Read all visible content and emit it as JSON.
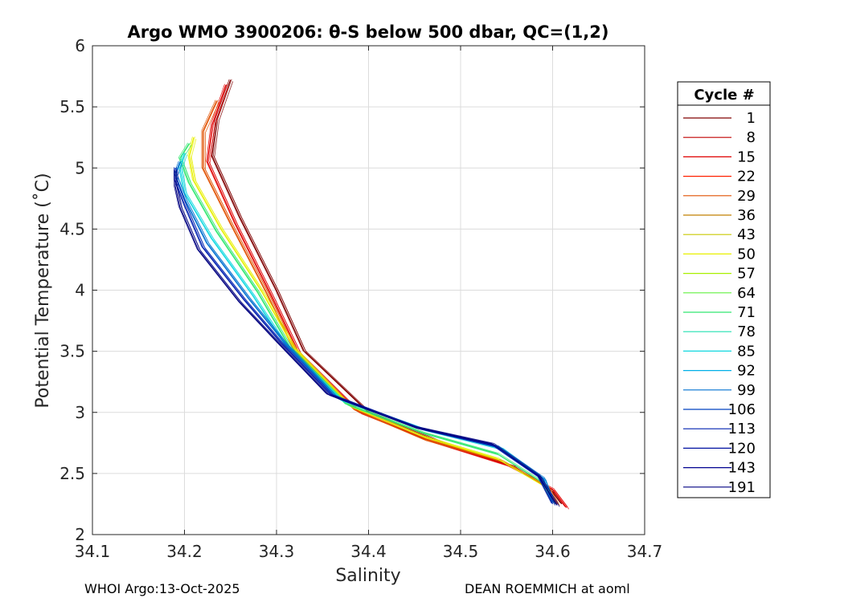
{
  "chart_data": {
    "type": "line",
    "title": "Argo WMO 3900206: θ-S below 500 dbar,  QC=(1,2)",
    "xlabel": "Salinity",
    "ylabel": "Potential Temperature (˚C)",
    "xlim": [
      34.1,
      34.7
    ],
    "ylim": [
      2,
      6
    ],
    "xticks": [
      "34.1",
      "34.2",
      "34.3",
      "34.4",
      "34.5",
      "34.6",
      "34.7"
    ],
    "yticks": [
      "2",
      "2.5",
      "3",
      "3.5",
      "4",
      "4.5",
      "5",
      "5.5",
      "6"
    ],
    "grid": true,
    "legend": {
      "title": "Cycle #",
      "placement": "outside-right",
      "entries": [
        "1",
        "8",
        "15",
        "22",
        "29",
        "36",
        "43",
        "50",
        "57",
        "64",
        "71",
        "78",
        "85",
        "92",
        "99",
        "106",
        "113",
        "120",
        "143",
        "191"
      ],
      "colors": [
        "#800000",
        "#c00000",
        "#e00000",
        "#ff2000",
        "#e05000",
        "#c08000",
        "#c8c800",
        "#e8f000",
        "#a8f000",
        "#60f040",
        "#30e870",
        "#20e0b0",
        "#10d8e0",
        "#00b0e8",
        "#0070d0",
        "#0040c0",
        "#0020b0",
        "#0010a0",
        "#000090",
        "#000080"
      ]
    },
    "series": [
      {
        "color": "#800000",
        "x": [
          34.25,
          34.235,
          34.23,
          34.26,
          34.3,
          34.33,
          34.4,
          34.48,
          34.56,
          34.6,
          34.61
        ],
        "y": [
          5.72,
          5.4,
          5.1,
          4.6,
          4.0,
          3.5,
          3.0,
          2.75,
          2.55,
          2.35,
          2.25
        ]
      },
      {
        "color": "#e00000",
        "x": [
          34.245,
          34.23,
          34.225,
          34.255,
          34.295,
          34.325,
          34.39,
          34.47,
          34.55,
          34.6,
          34.615
        ],
        "y": [
          5.68,
          5.35,
          5.05,
          4.55,
          3.95,
          3.48,
          3.0,
          2.76,
          2.57,
          2.37,
          2.22
        ]
      },
      {
        "color": "#e05000",
        "x": [
          34.235,
          34.22,
          34.22,
          34.25,
          34.29,
          34.32,
          34.385,
          34.46,
          34.545,
          34.595,
          34.605
        ],
        "y": [
          5.55,
          5.3,
          5.0,
          4.55,
          3.97,
          3.5,
          3.02,
          2.78,
          2.6,
          2.38,
          2.25
        ]
      },
      {
        "color": "#e8f000",
        "x": [
          34.21,
          34.205,
          34.21,
          34.24,
          34.285,
          34.32,
          34.38,
          34.46,
          34.54,
          34.59,
          34.6
        ],
        "y": [
          5.25,
          5.1,
          4.9,
          4.5,
          3.98,
          3.52,
          3.05,
          2.8,
          2.62,
          2.4,
          2.26
        ]
      },
      {
        "color": "#30e870",
        "x": [
          34.205,
          34.195,
          34.205,
          34.235,
          34.28,
          34.315,
          34.375,
          34.46,
          34.54,
          34.59,
          34.6
        ],
        "y": [
          5.2,
          5.08,
          4.88,
          4.48,
          3.98,
          3.53,
          3.07,
          2.83,
          2.66,
          2.42,
          2.27
        ]
      },
      {
        "color": "#10d8e0",
        "x": [
          34.2,
          34.195,
          34.2,
          34.23,
          34.275,
          34.31,
          34.37,
          34.46,
          34.545,
          34.59,
          34.6
        ],
        "y": [
          5.12,
          5.0,
          4.8,
          4.42,
          3.95,
          3.55,
          3.1,
          2.86,
          2.7,
          2.45,
          2.27
        ]
      },
      {
        "color": "#0070d0",
        "x": [
          34.195,
          34.19,
          34.2,
          34.225,
          34.27,
          34.31,
          34.365,
          34.455,
          34.54,
          34.59,
          34.6
        ],
        "y": [
          5.05,
          4.95,
          4.75,
          4.38,
          3.93,
          3.56,
          3.12,
          2.87,
          2.72,
          2.46,
          2.26
        ]
      },
      {
        "color": "#0020b0",
        "x": [
          34.19,
          34.19,
          34.2,
          34.22,
          34.265,
          34.305,
          34.36,
          34.45,
          34.535,
          34.585,
          34.6
        ],
        "y": [
          5.0,
          4.9,
          4.7,
          4.35,
          3.92,
          3.57,
          3.14,
          2.88,
          2.73,
          2.47,
          2.25
        ]
      },
      {
        "color": "#000080",
        "x": [
          34.19,
          34.19,
          34.195,
          34.215,
          34.26,
          34.3,
          34.355,
          34.45,
          34.535,
          34.585,
          34.605
        ],
        "y": [
          4.98,
          4.85,
          4.68,
          4.33,
          3.9,
          3.58,
          3.15,
          2.88,
          2.74,
          2.48,
          2.24
        ]
      }
    ]
  },
  "footer": {
    "left": "WHOI Argo:13-Oct-2025",
    "right": "DEAN ROEMMICH at aoml"
  }
}
